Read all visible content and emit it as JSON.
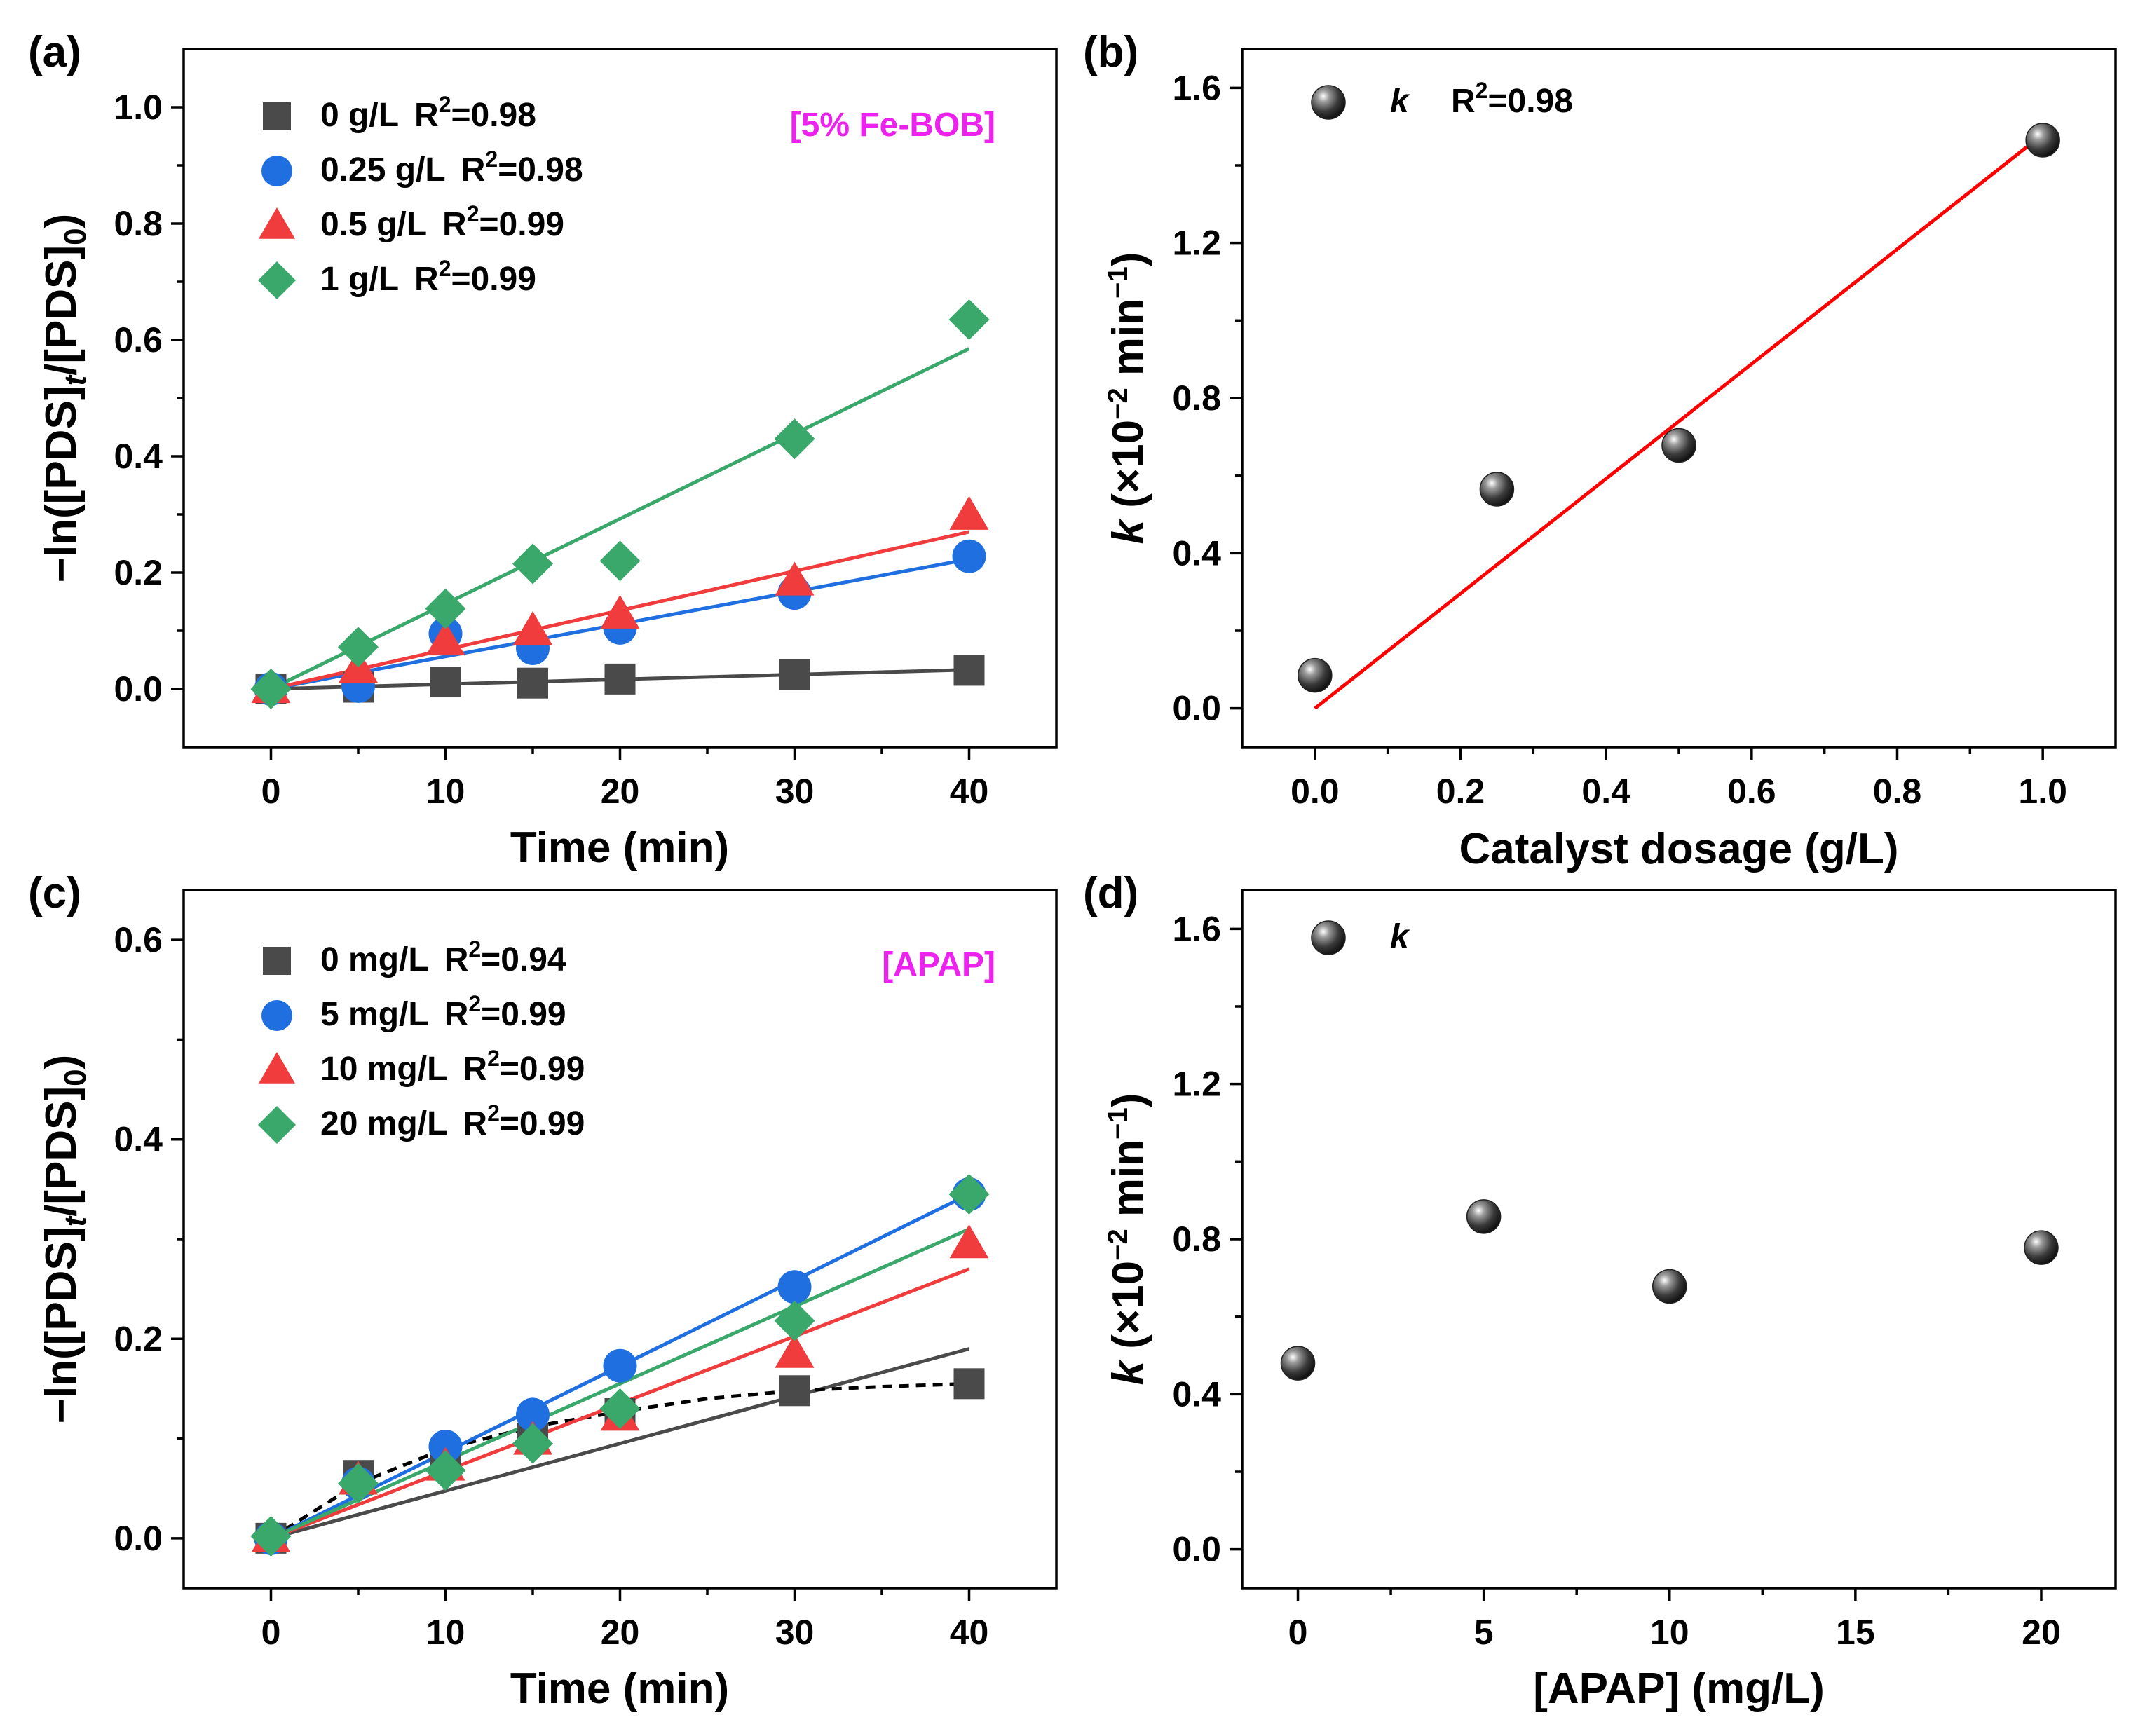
{
  "chart_data": [
    {
      "panel": "(a)",
      "type": "scatter",
      "xlabel": "Time (min)",
      "ylabel": "−ln([PDS]t/[PDS]0)",
      "xlim": [
        -5,
        45
      ],
      "ylim": [
        -0.1,
        1.1
      ],
      "xticks": [
        "0",
        "10",
        "20",
        "30",
        "40"
      ],
      "yticks": [
        "0.0",
        "0.2",
        "0.4",
        "0.6",
        "0.8",
        "1.0"
      ],
      "tag": "[5% Fe-BOB]",
      "tag_color": "#ee22ee",
      "x": [
        0,
        5,
        10,
        15,
        20,
        30,
        40
      ],
      "series": [
        {
          "name": "0 g/L",
          "r2": "R2=0.98",
          "marker": "square",
          "color": "#4a4a4a",
          "values": [
            0.0,
            0.003,
            0.012,
            0.01,
            0.017,
            0.025,
            0.032
          ],
          "fit": [
            0,
            0.033
          ]
        },
        {
          "name": "0.25 g/L",
          "r2": "R2=0.98",
          "marker": "circle",
          "color": "#1f6fe0",
          "values": [
            0.0,
            0.005,
            0.095,
            0.07,
            0.105,
            0.165,
            0.228
          ],
          "fit": [
            0,
            0.223
          ]
        },
        {
          "name": "0.5 g/L",
          "r2": "R2=0.99",
          "marker": "triangle",
          "color": "#f03c3c",
          "values": [
            0.0,
            0.035,
            0.082,
            0.1,
            0.128,
            0.185,
            0.298
          ],
          "fit": [
            0,
            0.27
          ]
        },
        {
          "name": "1 g/L",
          "r2": "R2=0.99",
          "marker": "diamond",
          "color": "#3aa86a",
          "values": [
            0.0,
            0.072,
            0.138,
            0.215,
            0.22,
            0.43,
            0.635
          ],
          "fit": [
            0,
            0.585
          ]
        }
      ]
    },
    {
      "panel": "(b)",
      "type": "scatter",
      "xlabel": "Catalyst dosage (g/L)",
      "ylabel": "k (×10−2 min−1)",
      "xlim": [
        -0.1,
        1.1
      ],
      "ylim": [
        -0.1,
        1.7
      ],
      "xticks": [
        "0.0",
        "0.2",
        "0.4",
        "0.6",
        "0.8",
        "1.0"
      ],
      "yticks": [
        "0.0",
        "0.4",
        "0.8",
        "1.2",
        "1.6"
      ],
      "series": [
        {
          "name": "k",
          "r2": "R2=0.98",
          "marker": "sphere",
          "color": "#3a3a3a",
          "x": [
            0.0,
            0.25,
            0.5,
            1.0
          ],
          "values": [
            0.085,
            0.565,
            0.678,
            1.465
          ]
        }
      ],
      "fit": {
        "x": [
          0.0,
          1.0
        ],
        "y": [
          0.0,
          1.48
        ],
        "color": "#ff0000"
      }
    },
    {
      "panel": "(c)",
      "type": "scatter",
      "xlabel": "Time (min)",
      "ylabel": "−ln([PDS]t/[PDS]0)",
      "xlim": [
        -5,
        45
      ],
      "ylim": [
        -0.05,
        0.65
      ],
      "xticks": [
        "0",
        "10",
        "20",
        "30",
        "40"
      ],
      "yticks": [
        "0.0",
        "0.2",
        "0.4",
        "0.6"
      ],
      "tag": "[APAP]",
      "tag_color": "#ee22ee",
      "x": [
        0,
        5,
        10,
        15,
        20,
        30,
        40
      ],
      "series": [
        {
          "name": "0 mg/L",
          "r2": "R2=0.94",
          "marker": "square",
          "color": "#4a4a4a",
          "values": [
            0.0,
            0.063,
            0.08,
            0.1,
            0.125,
            0.148,
            0.155
          ],
          "fit": [
            0,
            0.19
          ],
          "dashed": [
            [
              0,
              0.0
            ],
            [
              5,
              0.055
            ],
            [
              10,
              0.09
            ],
            [
              15,
              0.112
            ],
            [
              20,
              0.127
            ],
            [
              25,
              0.14
            ],
            [
              30,
              0.148
            ],
            [
              35,
              0.152
            ],
            [
              40,
              0.155
            ]
          ]
        },
        {
          "name": "5 mg/L",
          "r2": "R2=0.99",
          "marker": "circle",
          "color": "#1f6fe0",
          "values": [
            0.0,
            0.055,
            0.092,
            0.124,
            0.173,
            0.252,
            0.345
          ],
          "fit": [
            0,
            0.345
          ]
        },
        {
          "name": "10 mg/L",
          "r2": "R2=0.99",
          "marker": "triangle",
          "color": "#f03c3c",
          "values": [
            0.0,
            0.058,
            0.072,
            0.098,
            0.122,
            0.185,
            0.295
          ],
          "fit": [
            0,
            0.27
          ]
        },
        {
          "name": "20 mg/L",
          "r2": "R2=0.99",
          "marker": "diamond",
          "color": "#3aa86a",
          "values": [
            0.002,
            0.055,
            0.068,
            0.095,
            0.13,
            0.218,
            0.345
          ],
          "fit": [
            0,
            0.31
          ]
        }
      ]
    },
    {
      "panel": "(d)",
      "type": "scatter",
      "xlabel": "[APAP] (mg/L)",
      "ylabel": "k (×10−2 min−1)",
      "xlim": [
        -1.5,
        22
      ],
      "ylim": [
        -0.1,
        1.7
      ],
      "xticks": [
        "0",
        "5",
        "10",
        "15",
        "20"
      ],
      "yticks": [
        "0.0",
        "0.4",
        "0.8",
        "1.2",
        "1.6"
      ],
      "series": [
        {
          "name": "k",
          "marker": "sphere",
          "color": "#3a3a3a",
          "x": [
            0,
            5,
            10,
            20
          ],
          "values": [
            0.48,
            0.858,
            0.678,
            0.778
          ]
        }
      ]
    }
  ]
}
